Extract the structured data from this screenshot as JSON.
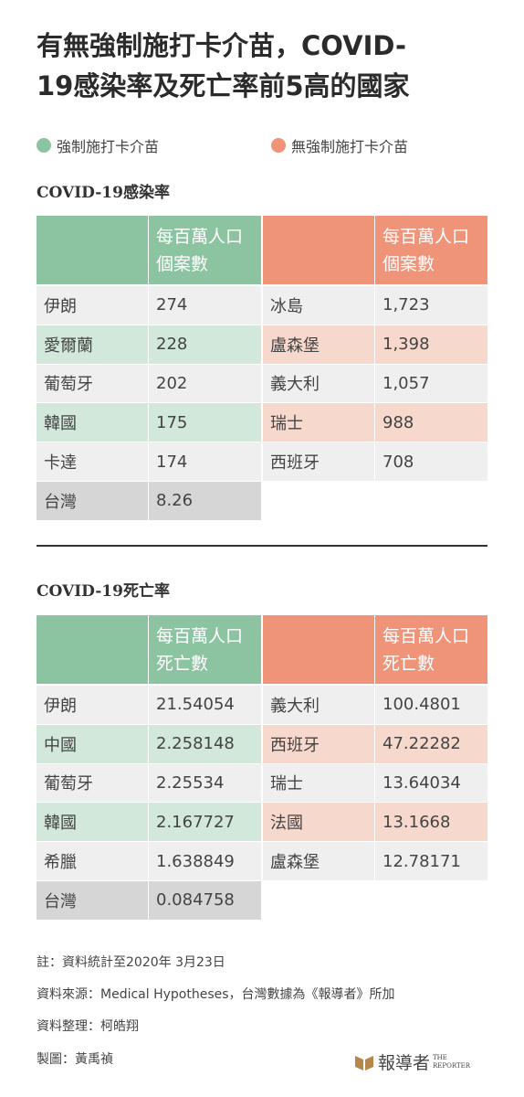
{
  "title": [
    "有無強制施打卡介苗，COVID-",
    "19感染率及死亡率前5高的國家"
  ],
  "legend": [
    "強制施打卡介苗",
    "無強制施打卡介苗"
  ],
  "sections": [
    {
      "heading": "COVID-19感染率",
      "mandatory": {
        "header": "每百萬人口個案數",
        "rows": [
          [
            "伊朗",
            "274"
          ],
          [
            "愛爾蘭",
            "228"
          ],
          [
            "葡萄牙",
            "202"
          ],
          [
            "韓國",
            "175"
          ],
          [
            "卡達",
            "174"
          ],
          [
            "台灣",
            "8.26"
          ]
        ]
      },
      "non_mandatory": {
        "header": "每百萬人口個案數",
        "rows": [
          [
            "冰島",
            "1,723"
          ],
          [
            "盧森堡",
            "1,398"
          ],
          [
            "義大利",
            "1,057"
          ],
          [
            "瑞士",
            "988"
          ],
          [
            "西班牙",
            "708"
          ]
        ]
      }
    },
    {
      "heading": "COVID-19死亡率",
      "mandatory": {
        "header": "每百萬人口死亡數",
        "rows": [
          [
            "伊朗",
            "21.54054"
          ],
          [
            "中國",
            "2.258148"
          ],
          [
            "葡萄牙",
            "2.25534"
          ],
          [
            "韓國",
            "2.167727"
          ],
          [
            "希臘",
            "1.638849"
          ],
          [
            "台灣",
            "0.084758"
          ]
        ]
      },
      "non_mandatory": {
        "header": "每百萬人口死亡數",
        "rows": [
          [
            "義大利",
            "100.4801"
          ],
          [
            "西班牙",
            "47.22282"
          ],
          [
            "瑞士",
            "13.64034"
          ],
          [
            "法國",
            "13.1668"
          ],
          [
            "盧森堡",
            "12.78171"
          ]
        ]
      }
    }
  ],
  "notes": [
    "註：資料統計至2020年 3月23日",
    "資料來源：Medical Hypotheses，台灣數據為《報導者》所加",
    "資料整理：柯皓翔",
    "製圖：黃禹禎"
  ],
  "logo": {
    "text": "報導者",
    "sub1": "THE",
    "sub2": "REPORTER"
  }
}
